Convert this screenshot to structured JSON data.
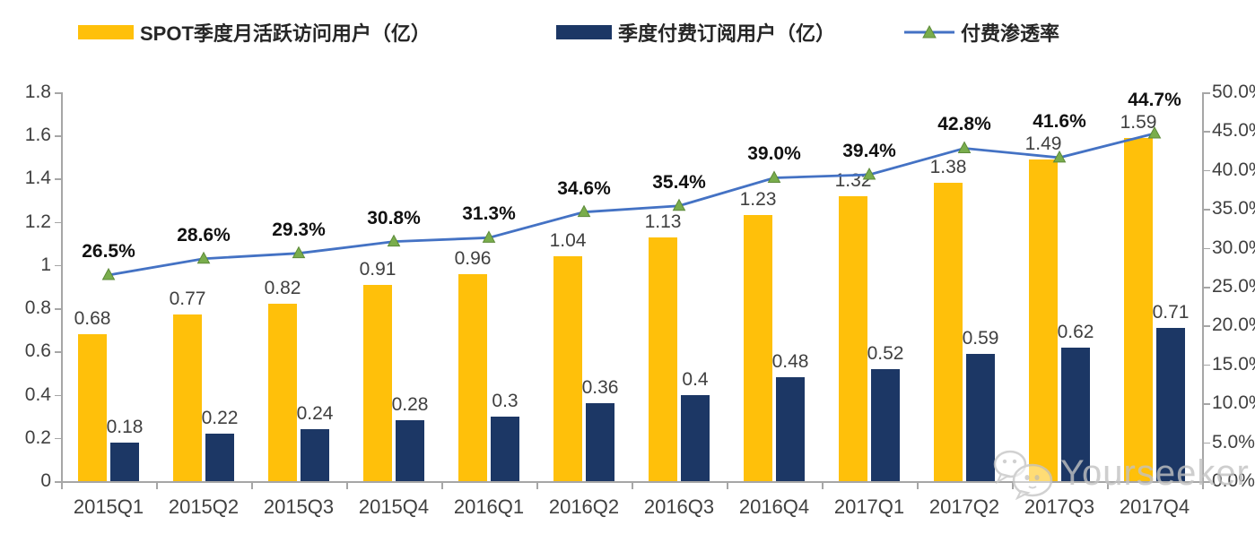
{
  "legend": [
    {
      "label": "SPOT季度月活跃访问用户（亿）",
      "color": "#FFC00A",
      "type": "bar"
    },
    {
      "label": "季度付费订阅用户（亿）",
      "color": "#1C3765",
      "type": "bar"
    },
    {
      "label": "付费渗透率",
      "color": "#4472C4",
      "marker_color": "#79AD4C",
      "type": "line"
    }
  ],
  "watermark": {
    "text": "Yourseeker"
  },
  "chart_data": {
    "type": "bar+line combo",
    "categories": [
      "2015Q1",
      "2015Q2",
      "2015Q3",
      "2015Q4",
      "2016Q1",
      "2016Q2",
      "2016Q3",
      "2016Q4",
      "2017Q1",
      "2017Q2",
      "2017Q3",
      "2017Q4"
    ],
    "series": [
      {
        "name": "SPOT季度月活跃访问用户（亿）",
        "type": "bar",
        "axis": "left",
        "color": "#FFC00A",
        "values": [
          0.68,
          0.77,
          0.82,
          0.91,
          0.96,
          1.04,
          1.13,
          1.23,
          1.32,
          1.38,
          1.49,
          1.59
        ],
        "labels": [
          "0.68",
          "0.77",
          "0.82",
          "0.91",
          "0.96",
          "1.04",
          "1.13",
          "1.23",
          "1.32",
          "1.38",
          "1.49",
          "1.59"
        ]
      },
      {
        "name": "季度付费订阅用户（亿）",
        "type": "bar",
        "axis": "left",
        "color": "#1C3765",
        "values": [
          0.18,
          0.22,
          0.24,
          0.28,
          0.3,
          0.36,
          0.4,
          0.48,
          0.52,
          0.59,
          0.62,
          0.71
        ],
        "labels": [
          "0.18",
          "0.22",
          "0.24",
          "0.28",
          "0.3",
          "0.36",
          "0.4",
          "0.48",
          "0.52",
          "0.59",
          "0.62",
          "0.71"
        ]
      },
      {
        "name": "付费渗透率",
        "type": "line",
        "axis": "right",
        "color": "#4472C4",
        "marker": "triangle",
        "marker_color": "#79AD4C",
        "values": [
          26.5,
          28.6,
          29.3,
          30.8,
          31.3,
          34.6,
          35.4,
          39.0,
          39.4,
          42.8,
          41.6,
          44.7
        ],
        "labels": [
          "26.5%",
          "28.6%",
          "29.3%",
          "30.8%",
          "31.3%",
          "34.6%",
          "35.4%",
          "39.0%",
          "39.4%",
          "42.8%",
          "41.6%",
          "44.7%"
        ]
      }
    ],
    "left_axis": {
      "min": 0,
      "max": 1.8,
      "step": 0.2,
      "ticks": [
        "0",
        "0.2",
        "0.4",
        "0.6",
        "0.8",
        "1",
        "1.2",
        "1.4",
        "1.6",
        "1.8"
      ]
    },
    "right_axis": {
      "min": 0,
      "max": 50,
      "step": 5,
      "ticks": [
        "0.0%",
        "5.0%",
        "10.0%",
        "15.0%",
        "20.0%",
        "25.0%",
        "30.0%",
        "35.0%",
        "40.0%",
        "45.0%",
        "50.0%"
      ]
    },
    "grid": false,
    "legend_position": "top"
  }
}
